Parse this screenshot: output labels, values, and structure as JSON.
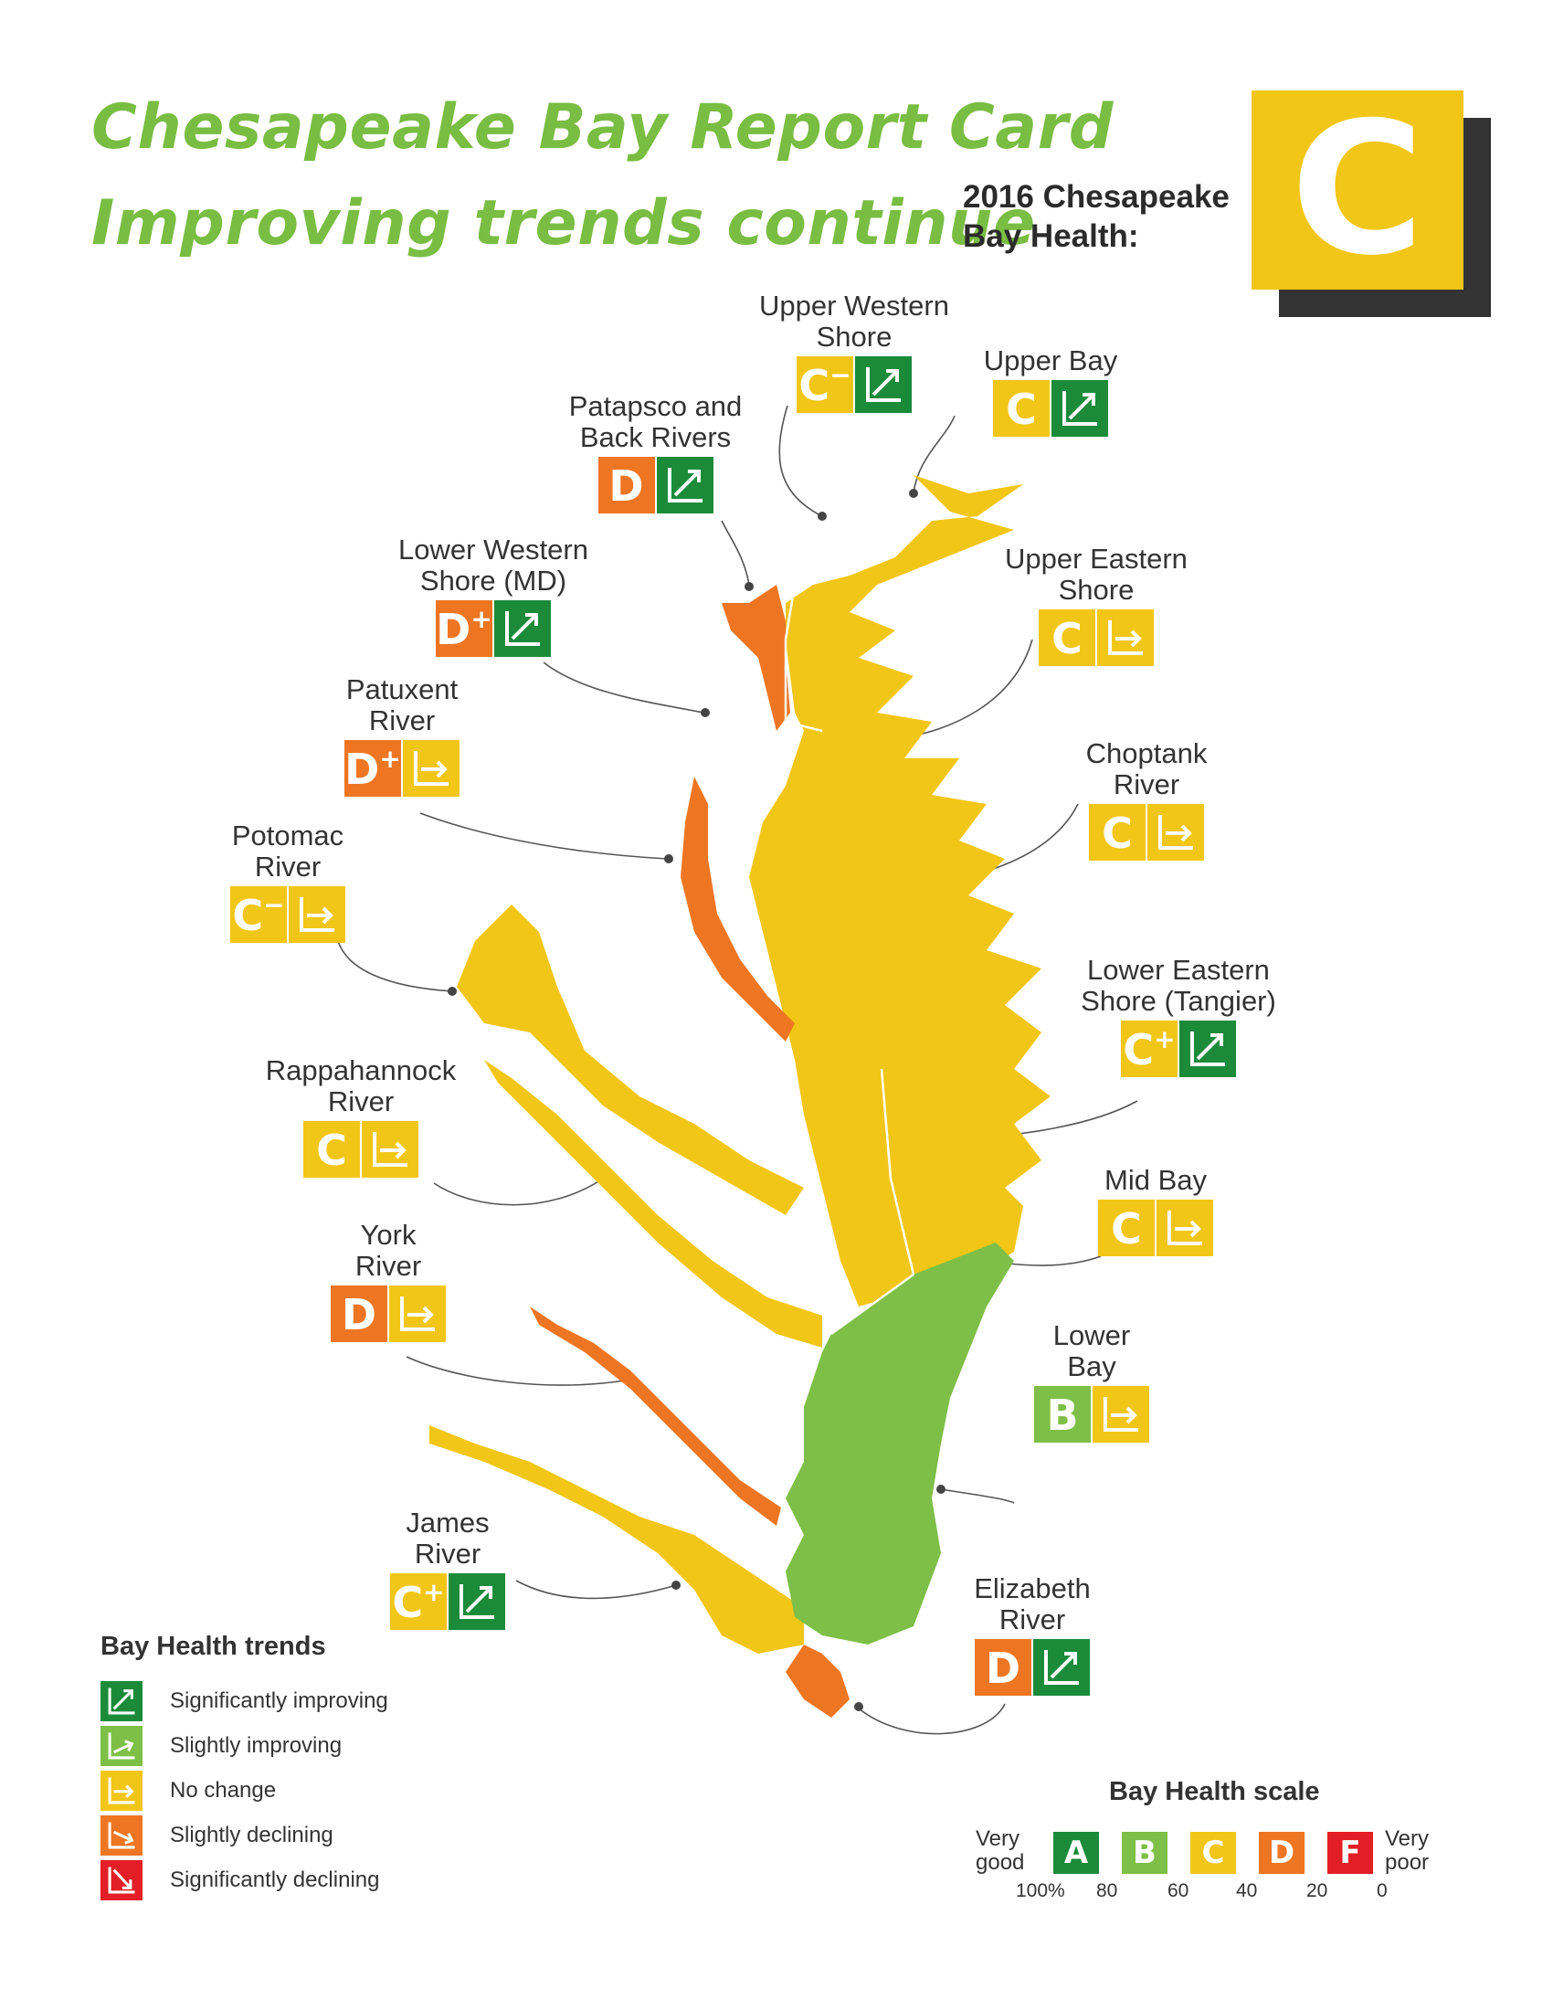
{
  "title": {
    "line1": "Chesapeake Bay Report Card",
    "line2": "Improving trends continue"
  },
  "overall": {
    "label": "2016 Chesapeake\nBay Health:",
    "grade": "C"
  },
  "colors": {
    "A": "#1b8b3a",
    "B": "#7dbf47",
    "C": "#f2c617",
    "D": "#ee7623",
    "F": "#e31e26",
    "title": "#79bd43",
    "shadow": "#333333"
  },
  "regions": [
    {
      "key": "upper_western_shore",
      "name": "Upper Western\nShore",
      "grade_letter": "C",
      "grade_mod": "−",
      "color_grade": "C",
      "trend": "significantly-improving"
    },
    {
      "key": "upper_bay",
      "name": "Upper Bay",
      "grade_letter": "C",
      "grade_mod": "",
      "color_grade": "C",
      "trend": "significantly-improving"
    },
    {
      "key": "patapsco_back",
      "name": "Patapsco and\nBack Rivers",
      "grade_letter": "D",
      "grade_mod": "",
      "color_grade": "D",
      "trend": "significantly-improving"
    },
    {
      "key": "lower_western_shore",
      "name": "Lower Western\nShore (MD)",
      "grade_letter": "D",
      "grade_mod": "+",
      "color_grade": "D",
      "trend": "significantly-improving"
    },
    {
      "key": "upper_eastern_shore",
      "name": "Upper Eastern\nShore",
      "grade_letter": "C",
      "grade_mod": "",
      "color_grade": "C",
      "trend": "no-change"
    },
    {
      "key": "patuxent",
      "name": "Patuxent\nRiver",
      "grade_letter": "D",
      "grade_mod": "+",
      "color_grade": "D",
      "trend": "no-change"
    },
    {
      "key": "choptank",
      "name": "Choptank\nRiver",
      "grade_letter": "C",
      "grade_mod": "",
      "color_grade": "C",
      "trend": "no-change"
    },
    {
      "key": "potomac",
      "name": "Potomac\nRiver",
      "grade_letter": "C",
      "grade_mod": "−",
      "color_grade": "C",
      "trend": "no-change"
    },
    {
      "key": "lower_eastern_shore",
      "name": "Lower Eastern\nShore (Tangier)",
      "grade_letter": "C",
      "grade_mod": "+",
      "color_grade": "C",
      "trend": "significantly-improving"
    },
    {
      "key": "rappahannock",
      "name": "Rappahannock\nRiver",
      "grade_letter": "C",
      "grade_mod": "",
      "color_grade": "C",
      "trend": "no-change"
    },
    {
      "key": "mid_bay",
      "name": "Mid Bay",
      "grade_letter": "C",
      "grade_mod": "",
      "color_grade": "C",
      "trend": "no-change"
    },
    {
      "key": "york",
      "name": "York\nRiver",
      "grade_letter": "D",
      "grade_mod": "",
      "color_grade": "D",
      "trend": "no-change"
    },
    {
      "key": "lower_bay",
      "name": "Lower\nBay",
      "grade_letter": "B",
      "grade_mod": "",
      "color_grade": "B",
      "trend": "no-change"
    },
    {
      "key": "james",
      "name": "James\nRiver",
      "grade_letter": "C",
      "grade_mod": "+",
      "color_grade": "C",
      "trend": "significantly-improving"
    },
    {
      "key": "elizabeth",
      "name": "Elizabeth\nRiver",
      "grade_letter": "D",
      "grade_mod": "",
      "color_grade": "D",
      "trend": "significantly-improving"
    }
  ],
  "trend_legend": {
    "title": "Bay Health trends",
    "items": [
      {
        "key": "significantly-improving",
        "label": "Significantly improving",
        "color": "#1b8b3a"
      },
      {
        "key": "slightly-improving",
        "label": "Slightly improving",
        "color": "#7dbf47"
      },
      {
        "key": "no-change",
        "label": "No change",
        "color": "#f2c617"
      },
      {
        "key": "slightly-declining",
        "label": "Slightly declining",
        "color": "#ee7623"
      },
      {
        "key": "significantly-declining",
        "label": "Significantly declining",
        "color": "#e31e26"
      }
    ]
  },
  "scale": {
    "title": "Bay Health scale",
    "left_label": "Very\ngood",
    "right_label": "Very\npoor",
    "grades": [
      "A",
      "B",
      "C",
      "D",
      "F"
    ],
    "ticks": [
      "100%",
      "80",
      "60",
      "40",
      "20",
      "0"
    ]
  }
}
